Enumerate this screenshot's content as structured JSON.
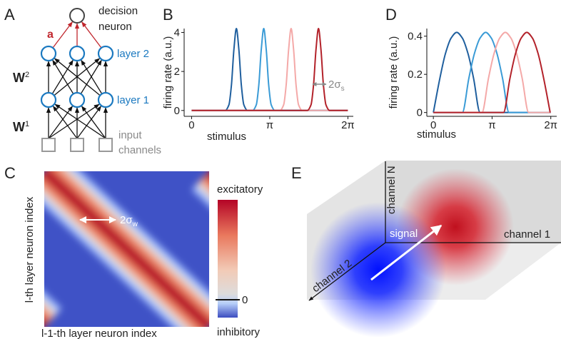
{
  "panel_labels": [
    "A",
    "B",
    "C",
    "D",
    "E"
  ],
  "panel_a": {
    "decision_neuron": [
      "decision",
      "neuron"
    ],
    "weight_a": "a",
    "layer_2": "layer 2",
    "layer_1": "layer 1",
    "w2": {
      "base": "W",
      "sup": "2"
    },
    "w1": {
      "base": "W",
      "sup": "1"
    },
    "input_channels": [
      "input",
      "channels"
    ]
  },
  "chart_data": [
    {
      "type": "line",
      "ylabel": "firing rate (a.u.)",
      "xlabel": "stimulus",
      "xlim": [
        -0.3,
        6.5
      ],
      "ylim": [
        -0.3,
        4.2
      ],
      "xticks": [
        0,
        {
          "value": 3.1416,
          "label": "π"
        },
        {
          "value": 6.2832,
          "label": "2π"
        }
      ],
      "yticks": [
        0,
        2,
        4
      ],
      "annotation": {
        "base": "2σ",
        "sub": "s"
      },
      "series": [
        {
          "color": "#1f5f9e",
          "x": [
            0,
            1.35,
            1.5,
            1.6,
            1.7,
            1.8,
            1.9,
            2.0,
            2.1,
            2.25,
            6.28
          ],
          "values": [
            0,
            0,
            0.29,
            1.29,
            3.12,
            4.2,
            3.12,
            1.29,
            0.29,
            0,
            0
          ]
        },
        {
          "color": "#3a9bd6",
          "x": [
            0,
            2.45,
            2.6,
            2.7,
            2.8,
            2.9,
            3.0,
            3.1,
            3.2,
            3.35,
            6.28
          ],
          "values": [
            0,
            0,
            0.29,
            1.29,
            3.12,
            4.2,
            3.12,
            1.29,
            0.29,
            0,
            0
          ]
        },
        {
          "color": "#f4a9a8",
          "x": [
            0,
            3.55,
            3.7,
            3.8,
            3.9,
            4.0,
            4.1,
            4.2,
            4.3,
            4.45,
            6.28
          ],
          "values": [
            0,
            0,
            0.29,
            1.29,
            3.12,
            4.2,
            3.12,
            1.29,
            0.29,
            0,
            0
          ]
        },
        {
          "color": "#b3222a",
          "x": [
            0,
            4.65,
            4.8,
            4.9,
            5.0,
            5.1,
            5.2,
            5.3,
            5.4,
            5.55,
            6.28
          ],
          "values": [
            0,
            0,
            0.29,
            1.29,
            3.12,
            4.2,
            3.12,
            1.29,
            0.29,
            0,
            0
          ]
        }
      ]
    },
    {
      "type": "line",
      "ylabel": "firing rate (a.u.)",
      "xlabel": "stimulus",
      "xlim": [
        -0.35,
        6.6
      ],
      "ylim": [
        -0.02,
        0.44
      ],
      "xticks": [
        0,
        {
          "value": 3.1416,
          "label": "π"
        },
        {
          "value": 6.2832,
          "label": "2π"
        }
      ],
      "yticks": [
        0,
        0.2,
        0.4
      ],
      "series": [
        {
          "color": "#1f5f9e",
          "x": [
            0,
            0.35,
            0.65,
            0.95,
            1.25,
            1.55,
            1.85,
            2.15,
            2.5,
            6.28
          ],
          "values": [
            0,
            0.18,
            0.31,
            0.39,
            0.42,
            0.39,
            0.31,
            0.18,
            0,
            0
          ]
        },
        {
          "color": "#3a9bd6",
          "x": [
            0,
            1.55,
            1.9,
            2.2,
            2.5,
            2.8,
            3.1,
            3.4,
            3.7,
            4.05,
            6.28
          ],
          "values": [
            0,
            0,
            0.18,
            0.31,
            0.39,
            0.42,
            0.39,
            0.31,
            0.18,
            0,
            0
          ]
        },
        {
          "color": "#f4a9a8",
          "x": [
            0,
            2.6,
            2.95,
            3.25,
            3.55,
            3.85,
            4.15,
            4.45,
            4.75,
            5.1,
            6.28
          ],
          "values": [
            0,
            0,
            0.18,
            0.31,
            0.39,
            0.42,
            0.39,
            0.31,
            0.18,
            0,
            0
          ]
        },
        {
          "color": "#b3222a",
          "x": [
            0,
            3.75,
            4.1,
            4.4,
            4.7,
            5.0,
            5.3,
            5.6,
            5.9,
            6.25
          ],
          "values": [
            0,
            0,
            0.18,
            0.31,
            0.39,
            0.42,
            0.39,
            0.31,
            0.18,
            0
          ]
        }
      ]
    }
  ],
  "panel_c": {
    "ylabel": "l-th layer neuron index",
    "xlabel": "l-1-th layer neuron index",
    "width_label": {
      "base": "2σ",
      "sub": "w"
    },
    "colorbar": {
      "top": "excitatory",
      "bottom": "inhibitory",
      "tick": 0
    }
  },
  "panel_e": {
    "channel_n": "channel N",
    "channel_1": "channel 1",
    "channel_2": "channel 2",
    "signal": "signal"
  }
}
